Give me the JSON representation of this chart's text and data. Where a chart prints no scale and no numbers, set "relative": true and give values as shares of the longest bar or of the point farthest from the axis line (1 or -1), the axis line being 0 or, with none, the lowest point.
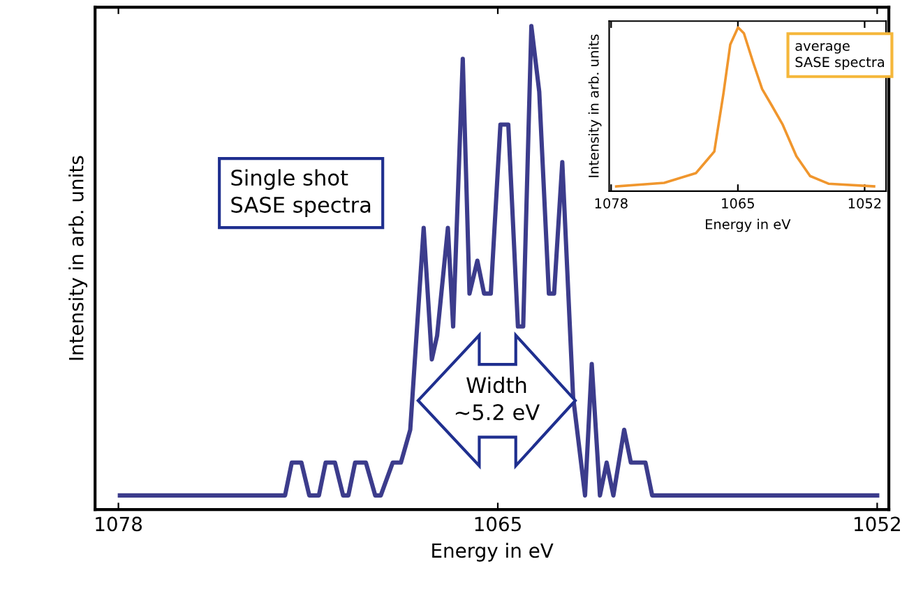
{
  "chart_data": [
    {
      "type": "line",
      "xlabel": "Energy in eV",
      "ylabel": "Intensity in arb. units",
      "relative": true,
      "xlim": [
        1078.8,
        1051.6
      ],
      "xticks": [
        1078,
        1065,
        1052
      ],
      "tick_labels": "x",
      "grid": false,
      "marker": "none",
      "line_style": "solid",
      "annotations": [
        "Single shot\nSASE spectra",
        "Width\n~5.2 eV"
      ],
      "series": [
        {
          "color": "#3c3c8c",
          "x": [
            1077.95,
            1072.29,
            1072.06,
            1071.73,
            1071.46,
            1071.13,
            1070.9,
            1070.58,
            1070.3,
            1070.12,
            1069.89,
            1069.52,
            1069.2,
            1069.01,
            1068.6,
            1068.32,
            1068.0,
            1067.54,
            1067.26,
            1067.08,
            1066.71,
            1066.53,
            1066.2,
            1065.97,
            1065.7,
            1065.47,
            1065.24,
            1064.91,
            1064.64,
            1064.31,
            1064.13,
            1063.85,
            1063.58,
            1063.25,
            1063.07,
            1062.79,
            1062.42,
            1062.01,
            1061.78,
            1061.5,
            1061.27,
            1061.04,
            1060.67,
            1060.44,
            1059.94,
            1059.71,
            1052.0
          ],
          "values": [
            0,
            0,
            0.07,
            0.07,
            0,
            0,
            0.07,
            0.07,
            0,
            0,
            0.07,
            0.07,
            0,
            0,
            0.07,
            0.07,
            0.14,
            0.57,
            0.29,
            0.34,
            0.57,
            0.36,
            0.93,
            0.43,
            0.5,
            0.43,
            0.43,
            0.79,
            0.79,
            0.36,
            0.36,
            1.0,
            0.86,
            0.43,
            0.43,
            0.71,
            0.21,
            0,
            0.28,
            0,
            0.07,
            0,
            0.14,
            0.07,
            0.07,
            0,
            0
          ]
        }
      ]
    },
    {
      "type": "line",
      "xlabel": "Energy in eV",
      "ylabel": "Intensity in arb. units",
      "relative": true,
      "xlim": [
        1078.2,
        1049.8
      ],
      "xticks": [
        1078,
        1065,
        1052
      ],
      "tick_labels": "x",
      "grid": false,
      "marker": "none",
      "line_style": "solid",
      "annotations": [
        "average\nSASE spectra"
      ],
      "series": [
        {
          "color": "#f0962d",
          "x": [
            1077.48,
            1072.56,
            1069.29,
            1067.42,
            1066.48,
            1065.78,
            1064.98,
            1064.38,
            1063.44,
            1062.51,
            1061.57,
            1060.4,
            1059.0,
            1057.59,
            1055.71,
            1051.03
          ],
          "values": [
            0,
            0.022,
            0.084,
            0.219,
            0.584,
            0.893,
            1.0,
            0.963,
            0.781,
            0.612,
            0.514,
            0.388,
            0.19,
            0.065,
            0.017,
            0
          ]
        }
      ]
    }
  ]
}
